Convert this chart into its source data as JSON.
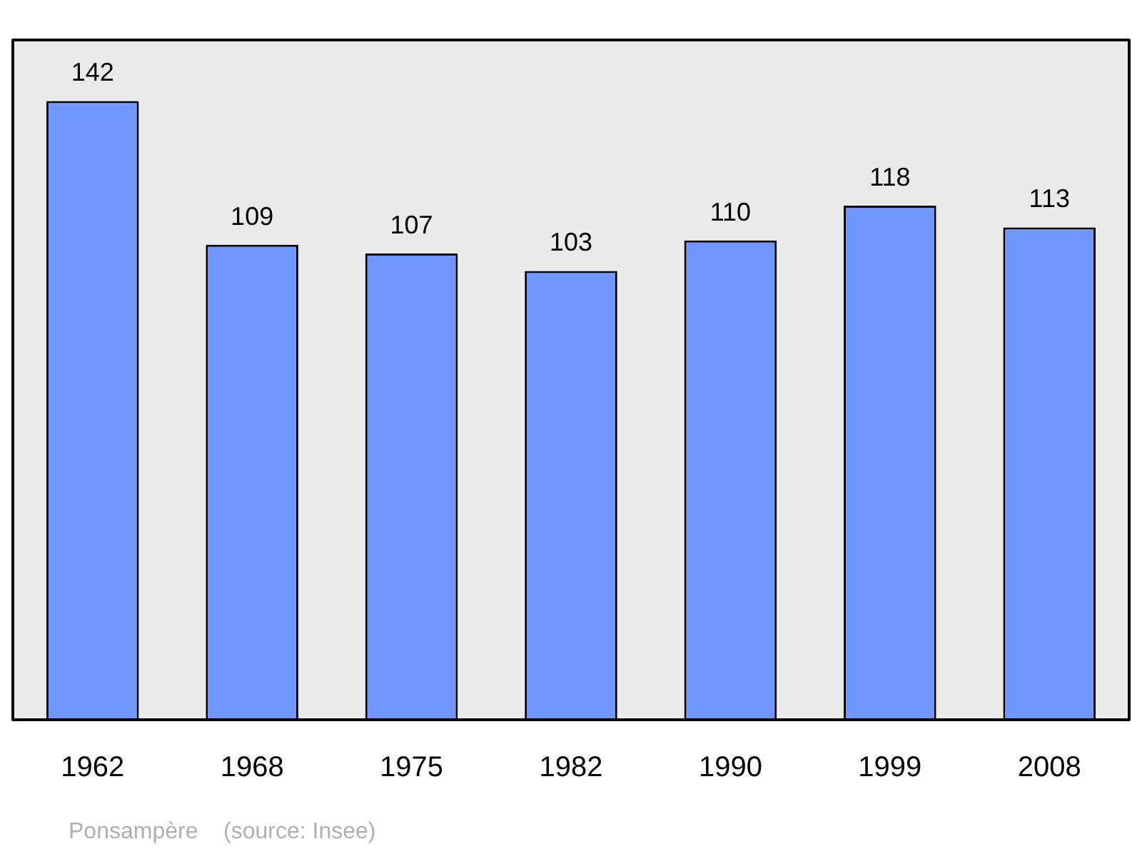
{
  "chart_data": {
    "type": "bar",
    "categories": [
      "1962",
      "1968",
      "1975",
      "1982",
      "1990",
      "1999",
      "2008"
    ],
    "values": [
      142,
      109,
      107,
      103,
      110,
      118,
      113
    ],
    "color": "#7097ff",
    "ylim": [
      0,
      156
    ],
    "data_labels": true,
    "grid": false,
    "legend": false,
    "tick_labels": "x",
    "annotations": [
      "Ponsampère    (source: Insee)"
    ]
  }
}
